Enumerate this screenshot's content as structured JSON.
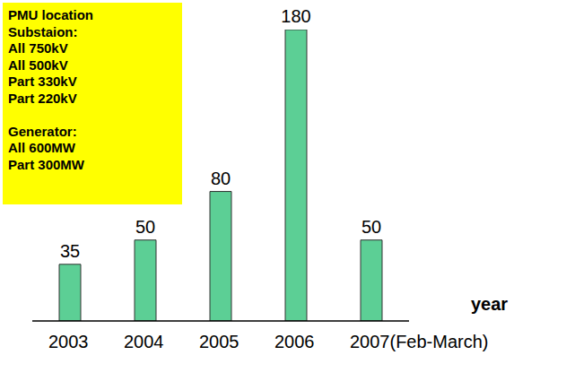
{
  "chart_data": {
    "type": "bar",
    "categories": [
      "2003",
      "2004",
      "2005",
      "2006",
      "2007(Feb-March)"
    ],
    "values": [
      35,
      50,
      80,
      180,
      50
    ],
    "color": "#5ccf95",
    "ylim": [
      0,
      180
    ],
    "data_labels": true,
    "tick_labels": "x",
    "x_label": "year",
    "annotation": {
      "color": "#ffff00",
      "lines": [
        [
          "PMU location",
          "Substaion:",
          "All 750kV",
          "All 500kV",
          "Part 330kV",
          "Part 220kV"
        ],
        [
          "Generator:",
          "All 600MW",
          "Part 300MW"
        ]
      ]
    }
  }
}
